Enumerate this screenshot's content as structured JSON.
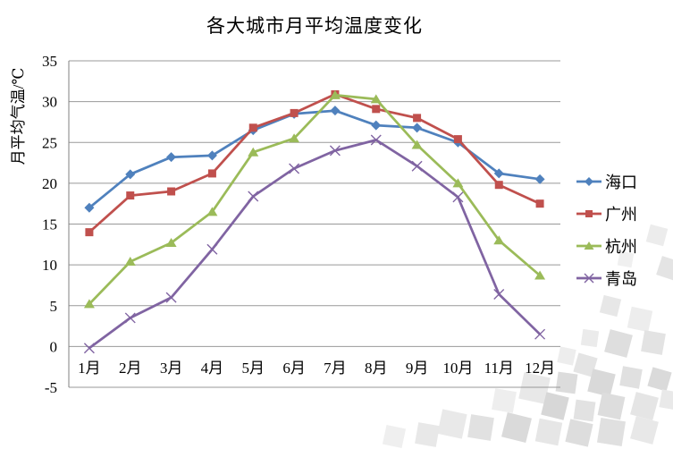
{
  "chart_data": {
    "type": "line",
    "title": "各大城市月平均温度变化",
    "ylabel": "月平均气温/℃",
    "xlabel": "",
    "categories": [
      "1月",
      "2月",
      "3月",
      "4月",
      "5月",
      "6月",
      "7月",
      "8月",
      "9月",
      "10月",
      "11月",
      "12月"
    ],
    "series": [
      {
        "name": "海口",
        "marker": "diamond",
        "color": "#4F81BD",
        "values": [
          17.0,
          21.1,
          23.2,
          23.4,
          26.5,
          28.5,
          28.9,
          27.1,
          26.8,
          25.0,
          21.2,
          20.5
        ]
      },
      {
        "name": "广州",
        "marker": "square",
        "color": "#C0504D",
        "values": [
          14.0,
          18.5,
          19.0,
          21.2,
          26.8,
          28.6,
          30.9,
          29.1,
          28.0,
          25.4,
          19.8,
          17.5
        ]
      },
      {
        "name": "杭州",
        "marker": "triangle",
        "color": "#9BBB59",
        "values": [
          5.2,
          10.4,
          12.7,
          16.5,
          23.8,
          25.5,
          30.8,
          30.3,
          24.7,
          20.0,
          13.0,
          8.7
        ]
      },
      {
        "name": "青岛",
        "marker": "x",
        "color": "#8064A2",
        "values": [
          -0.2,
          3.5,
          6.0,
          11.9,
          18.4,
          21.8,
          24.0,
          25.3,
          22.1,
          18.3,
          6.4,
          1.5
        ]
      }
    ],
    "ylim": [
      -5,
      35
    ],
    "ytick_step": 5,
    "grid": true,
    "legend_position": "right",
    "gridline_color": "#999999",
    "axis_color": "#808080",
    "text_color": "#000000"
  }
}
